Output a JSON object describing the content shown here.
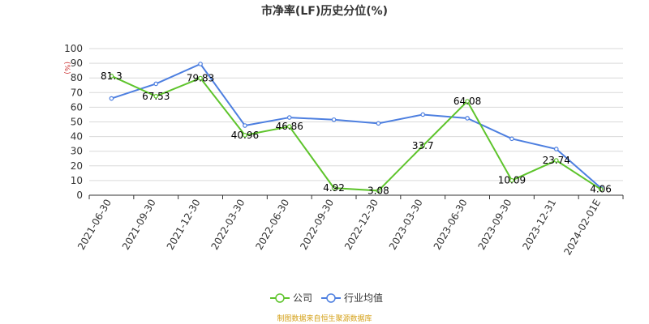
{
  "chart_data": {
    "type": "line",
    "title": "市净率(LF)历史分位(%)",
    "ylabel": "",
    "y_unit": "(%)",
    "ylim": [
      0,
      100
    ],
    "y_ticks": [
      0,
      10,
      20,
      30,
      40,
      50,
      60,
      70,
      80,
      90,
      100
    ],
    "grid": true,
    "legend_position": "bottom",
    "categories": [
      "2021-06-30",
      "2021-09-30",
      "2021-12-30",
      "2022-03-30",
      "2022-06-30",
      "2022-09-30",
      "2022-12-30",
      "2023-03-30",
      "2023-06-30",
      "2023-09-30",
      "2023-12-31",
      "2024-02-01E"
    ],
    "series": [
      {
        "name": "公司",
        "color": "#5ec42c",
        "values": [
          81.3,
          67.53,
          79.83,
          40.96,
          46.86,
          4.92,
          3.08,
          33.7,
          64.08,
          10.09,
          23.74,
          4.06
        ],
        "labels": [
          "81.3",
          "67.53",
          "79.83",
          "40.96",
          "46.86",
          "4.92",
          "3.08",
          "33.7",
          "64.08",
          "10.09",
          "23.74",
          "4.06"
        ]
      },
      {
        "name": "行业均值",
        "color": "#4d7fe0",
        "values": [
          66,
          76,
          89.5,
          47.5,
          53,
          51.5,
          49,
          55,
          52.5,
          38.5,
          31.5,
          5
        ]
      }
    ],
    "source": "制图数据来自恒生聚源数据库"
  }
}
